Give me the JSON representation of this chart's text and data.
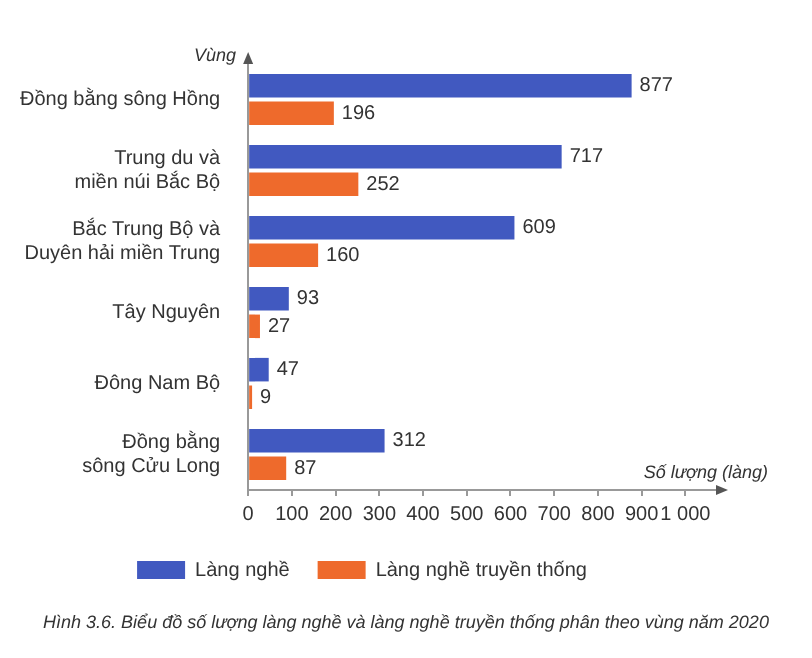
{
  "chart_data": {
    "type": "bar",
    "orientation": "horizontal",
    "ylabel": "Vùng",
    "xlabel": "Số lượng (làng)",
    "categories": [
      "Đồng bằng sông Hồng",
      "Trung du và\nmiền núi Bắc Bộ",
      "Bắc Trung Bộ và\nDuyên hải miền Trung",
      "Tây Nguyên",
      "Đông Nam Bộ",
      "Đồng bằng\nsông Cửu Long"
    ],
    "series": [
      {
        "name": "Làng nghề",
        "color": "#4159c0",
        "values": [
          877,
          717,
          609,
          93,
          47,
          312
        ]
      },
      {
        "name": "Làng nghề truyền thống",
        "color": "#ee6a2c",
        "values": [
          196,
          252,
          160,
          27,
          9,
          87
        ]
      }
    ],
    "xlim": [
      0,
      1070
    ],
    "xticks": [
      0,
      100,
      200,
      300,
      400,
      500,
      600,
      700,
      800,
      900,
      {
        "value": 1000,
        "label": "1 000"
      }
    ],
    "data_labels": true,
    "grid": false,
    "legend": "bottom",
    "annotations": [
      "Hình 3.6. Biểu đồ số lượng làng nghề và làng nghề truyền thống phân theo vùng năm 2020"
    ]
  }
}
